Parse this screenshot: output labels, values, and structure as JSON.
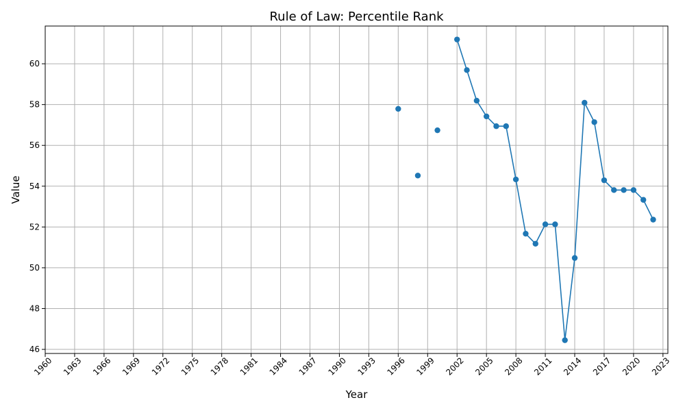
{
  "chart_data": {
    "type": "line",
    "title": "Rule of Law: Percentile Rank",
    "xlabel": "Year",
    "ylabel": "Value",
    "xlim": [
      1960,
      2023.5
    ],
    "ylim": [
      45.8,
      61.85
    ],
    "xticks": [
      1960,
      1963,
      1966,
      1969,
      1972,
      1975,
      1978,
      1981,
      1984,
      1987,
      1990,
      1993,
      1996,
      1999,
      2002,
      2005,
      2008,
      2011,
      2014,
      2017,
      2020,
      2023
    ],
    "yticks": [
      46,
      48,
      50,
      52,
      54,
      56,
      58,
      60
    ],
    "grid": true,
    "color": "#1f77b4",
    "series": [
      {
        "x": [
          1996,
          1998,
          2000,
          2002,
          2003,
          2004,
          2005,
          2006,
          2007,
          2008,
          2009,
          2010,
          2011,
          2012,
          2013,
          2014,
          2015,
          2016,
          2017,
          2018,
          2019,
          2020,
          2021,
          2022
        ],
        "values": [
          57.79,
          54.52,
          56.74,
          61.19,
          59.69,
          58.19,
          57.42,
          56.94,
          56.94,
          54.33,
          51.67,
          51.18,
          52.13,
          52.13,
          46.45,
          50.48,
          58.09,
          57.14,
          54.29,
          53.81,
          53.81,
          53.81,
          53.33,
          52.36
        ]
      }
    ]
  }
}
